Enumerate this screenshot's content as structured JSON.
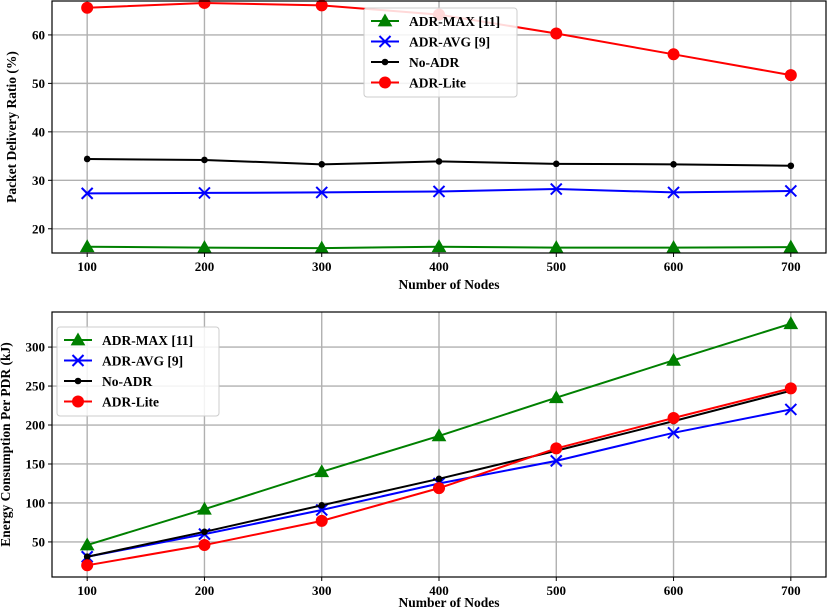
{
  "chart_data": [
    {
      "type": "line",
      "title": "",
      "xlabel": "Number of Nodes",
      "ylabel": "Packet Delivery Ratio (%)",
      "x": [
        100,
        200,
        300,
        400,
        500,
        600,
        700
      ],
      "xlim": [
        70,
        730
      ],
      "ylim": [
        15,
        67
      ],
      "yticks": [
        20,
        30,
        40,
        50,
        60
      ],
      "grid": true,
      "legend_position": "upper-center",
      "series": [
        {
          "name": "ADR-MAX [11]",
          "color": "#008000",
          "marker": "triangle",
          "values": [
            16.3,
            16.1,
            16.0,
            16.3,
            16.1,
            16.1,
            16.2
          ]
        },
        {
          "name": "ADR-AVG [9]",
          "color": "#0000ff",
          "marker": "x",
          "values": [
            27.3,
            27.4,
            27.5,
            27.7,
            28.2,
            27.5,
            27.8
          ]
        },
        {
          "name": "No-ADR",
          "color": "#000000",
          "marker": "dot",
          "values": [
            34.4,
            34.2,
            33.3,
            33.9,
            33.4,
            33.3,
            33.0
          ]
        },
        {
          "name": "ADR-Lite",
          "color": "#ff0000",
          "marker": "circle",
          "values": [
            65.6,
            66.6,
            66.1,
            64.2,
            60.3,
            56.0,
            51.7
          ]
        }
      ]
    },
    {
      "type": "line",
      "title": "",
      "xlabel": "Number of Nodes",
      "ylabel": "Energy Consumption Per PDR (kJ)",
      "x": [
        100,
        200,
        300,
        400,
        500,
        600,
        700
      ],
      "xlim": [
        70,
        730
      ],
      "ylim": [
        5,
        345
      ],
      "yticks": [
        50,
        100,
        150,
        200,
        250,
        300
      ],
      "grid": true,
      "legend_position": "upper-left",
      "series": [
        {
          "name": "ADR-MAX [11]",
          "color": "#008000",
          "marker": "triangle",
          "values": [
            46,
            92,
            140,
            186,
            235,
            283,
            330
          ]
        },
        {
          "name": "ADR-AVG [9]",
          "color": "#0000ff",
          "marker": "x",
          "values": [
            31,
            60,
            91,
            125,
            154,
            190,
            220
          ]
        },
        {
          "name": "No-ADR",
          "color": "#000000",
          "marker": "dot",
          "values": [
            31,
            63,
            97,
            131,
            167,
            205,
            244
          ]
        },
        {
          "name": "ADR-Lite",
          "color": "#ff0000",
          "marker": "circle",
          "values": [
            20,
            46,
            77,
            119,
            170,
            209,
            247
          ]
        }
      ]
    }
  ]
}
